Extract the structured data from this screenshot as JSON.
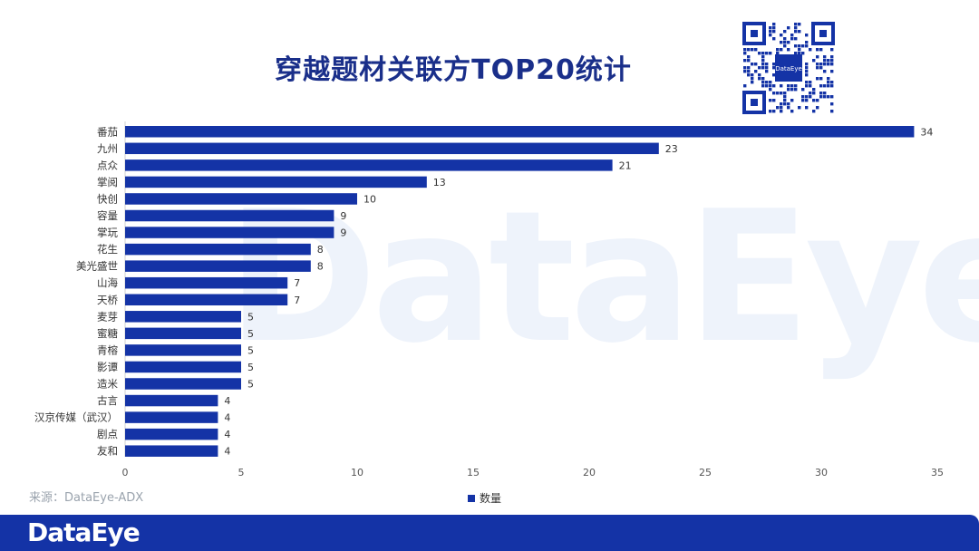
{
  "title": "穿越题材关联方TOP20统计",
  "source": "来源：DataEye-ADX",
  "brand": "DataEye",
  "qr_label": "DataEye",
  "colors": {
    "bar": "#1433a6",
    "title": "#1a2f8a",
    "footer": "#1433a6"
  },
  "chart_data": {
    "type": "bar",
    "orientation": "horizontal",
    "title": "穿越题材关联方TOP20统计",
    "categories": [
      "番茄",
      "九州",
      "点众",
      "掌阅",
      "快创",
      "容量",
      "掌玩",
      "花生",
      "美光盛世",
      "山海",
      "天桥",
      "麦芽",
      "蜜糖",
      "青榕",
      "影谭",
      "造米",
      "古言",
      "汉京传媒（武汉）",
      "剧点",
      "友和"
    ],
    "series": [
      {
        "name": "数量",
        "values": [
          34,
          23,
          21,
          13,
          10,
          9,
          9,
          8,
          8,
          7,
          7,
          5,
          5,
          5,
          5,
          5,
          4,
          4,
          4,
          4
        ]
      }
    ],
    "xlim": [
      0,
      35
    ],
    "xticks": [
      0,
      5,
      10,
      15,
      20,
      25,
      30,
      35
    ],
    "xlabel": "",
    "ylabel": "",
    "grid": false,
    "legend": "bottom-center",
    "data_labels": true
  }
}
